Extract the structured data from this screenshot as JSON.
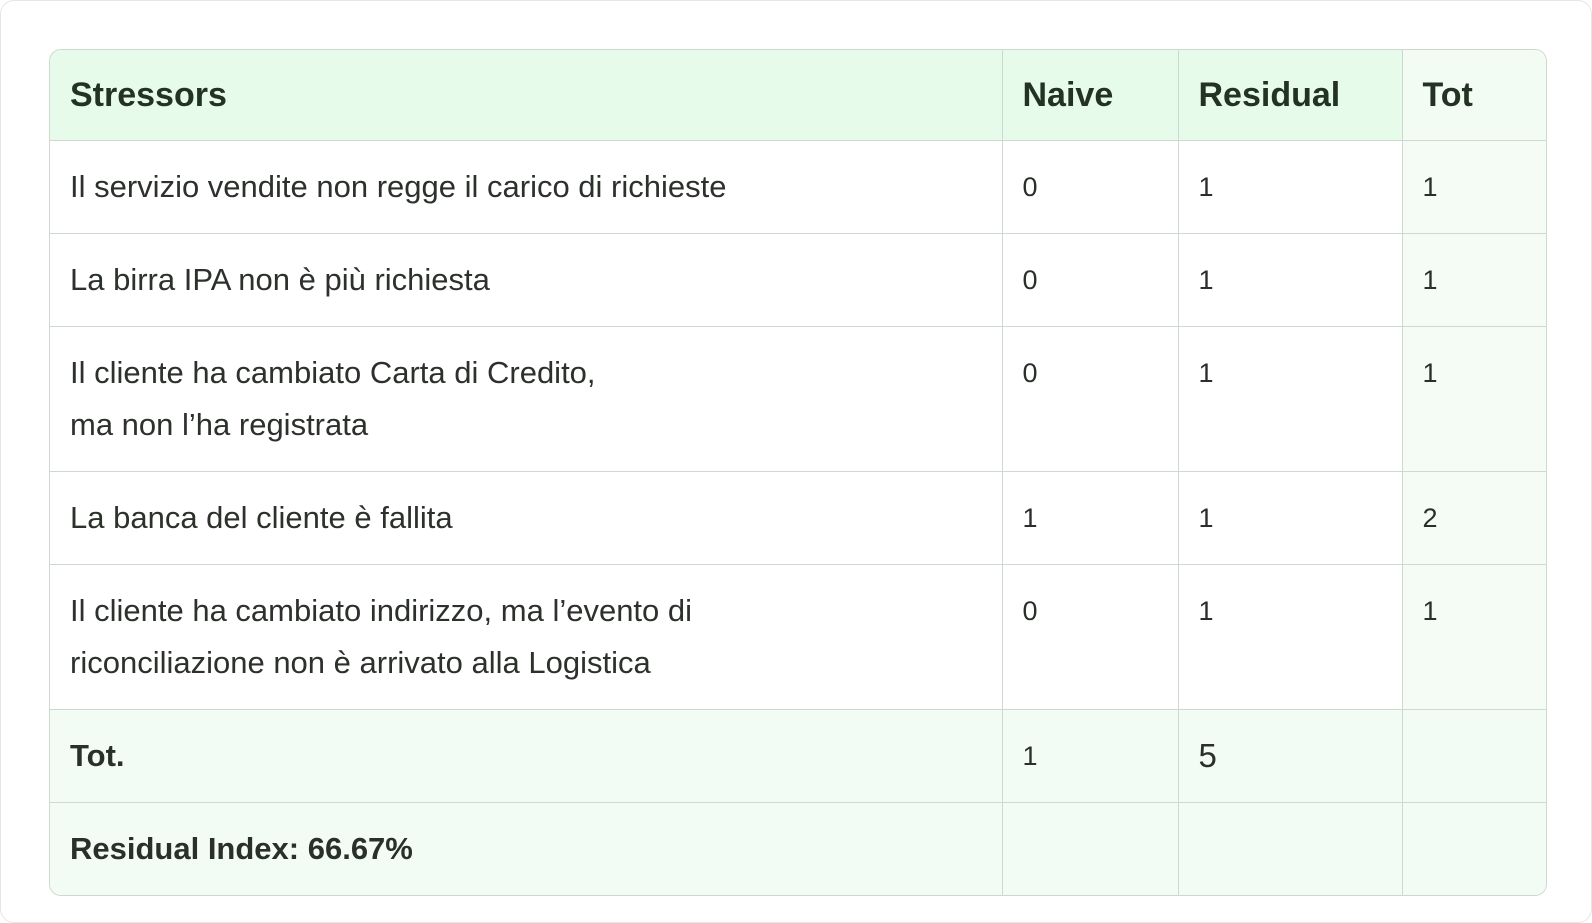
{
  "table": {
    "headers": [
      "Stressors",
      "Naive",
      "Residual",
      "Tot"
    ],
    "rows": [
      {
        "stressor_lines": [
          "Il servizio vendite non regge il carico di richieste"
        ],
        "naive": "0",
        "residual": "1",
        "tot": "1"
      },
      {
        "stressor_lines": [
          "La birra IPA non è più richiesta"
        ],
        "naive": "0",
        "residual": "1",
        "tot": "1"
      },
      {
        "stressor_lines": [
          "Il cliente ha cambiato Carta di Credito,",
          "ma non l’ha registrata"
        ],
        "naive": "0",
        "residual": "1",
        "tot": "1"
      },
      {
        "stressor_lines": [
          "La banca del cliente è fallita"
        ],
        "naive": "1",
        "residual": "1",
        "tot": "2"
      },
      {
        "stressor_lines": [
          "Il cliente ha cambiato indirizzo, ma l’evento di",
          "riconciliazione non è arrivato alla Logistica"
        ],
        "naive": "0",
        "residual": "1",
        "tot": "1"
      }
    ],
    "total": {
      "label": "Tot.",
      "naive": "1",
      "residual": "5",
      "tot": ""
    },
    "index": {
      "label": "Residual Index: 66.67%"
    }
  }
}
